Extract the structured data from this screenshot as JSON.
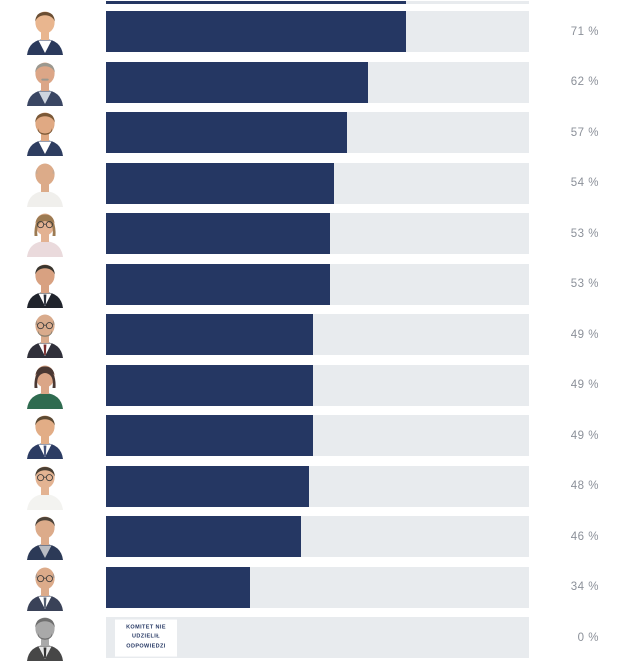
{
  "chart_data": {
    "type": "bar",
    "orientation": "horizontal",
    "title": "",
    "xlabel": "",
    "ylabel": "",
    "xlim": [
      0,
      100
    ],
    "grid": false,
    "legend": null,
    "categories": [
      "candidate-01",
      "candidate-02",
      "candidate-03",
      "candidate-04",
      "candidate-05",
      "candidate-06",
      "candidate-07",
      "candidate-08",
      "candidate-09",
      "candidate-10",
      "candidate-11",
      "candidate-12",
      "candidate-13"
    ],
    "values": [
      71,
      62,
      57,
      54,
      53,
      53,
      49,
      49,
      49,
      48,
      46,
      34,
      0
    ],
    "value_labels": [
      "71 %",
      "62 %",
      "57 %",
      "54 %",
      "53 %",
      "53 %",
      "49 %",
      "49 %",
      "49 %",
      "48 %",
      "46 %",
      "34 %",
      "0 %"
    ],
    "top_cutoff_bar_value": 71,
    "no_answer_note": "KOMITET NIE UDZIELIŁ ODPOWIEDZI",
    "colors": {
      "bar": "#253763",
      "track": "#e8ebee",
      "percent_text": "#8b9099",
      "note_text": "#253763",
      "note_bg": "#ffffff"
    },
    "rows": [
      {
        "value": 71,
        "label": "71 %",
        "no_answer": false,
        "avatar": {
          "name": "candidate-photo",
          "skin": "#e9b68f",
          "hair": "#6b4e33",
          "suit": "#2b3a5c",
          "shirt": "#ffffff",
          "tie": null,
          "glasses": false,
          "beard": false,
          "mustache": false,
          "female": false,
          "bald": false
        }
      },
      {
        "value": 62,
        "label": "62 %",
        "no_answer": false,
        "avatar": {
          "name": "candidate-photo",
          "skin": "#dca687",
          "hair": "#9b988f",
          "suit": "#3a4663",
          "shirt": "#cdd4de",
          "tie": null,
          "glasses": false,
          "beard": false,
          "mustache": true,
          "female": false,
          "bald": false
        }
      },
      {
        "value": 57,
        "label": "57 %",
        "no_answer": false,
        "avatar": {
          "name": "candidate-photo",
          "skin": "#e0a983",
          "hair": "#7b5836",
          "suit": "#2e3d60",
          "shirt": "#ffffff",
          "tie": null,
          "glasses": false,
          "beard": true,
          "mustache": false,
          "female": false,
          "bald": false
        }
      },
      {
        "value": 54,
        "label": "54 %",
        "no_answer": false,
        "avatar": {
          "name": "candidate-photo",
          "skin": "#dcab89",
          "hair": "#b9a897",
          "suit": "#f0efec",
          "shirt": null,
          "tie": null,
          "glasses": false,
          "beard": false,
          "mustache": false,
          "female": false,
          "bald": true
        }
      },
      {
        "value": 53,
        "label": "53 %",
        "no_answer": false,
        "avatar": {
          "name": "candidate-photo",
          "skin": "#e3b292",
          "hair": "#9c7a52",
          "suit": "#eadadc",
          "shirt": null,
          "tie": null,
          "glasses": true,
          "beard": false,
          "mustache": false,
          "female": true,
          "bald": false
        }
      },
      {
        "value": 53,
        "label": "53 %",
        "no_answer": false,
        "avatar": {
          "name": "candidate-photo",
          "skin": "#d8a181",
          "hair": "#3a352e",
          "suit": "#20242c",
          "shirt": "#ffffff",
          "tie": "#2a2f3a",
          "glasses": false,
          "beard": false,
          "mustache": false,
          "female": false,
          "bald": false
        }
      },
      {
        "value": 49,
        "label": "49 %",
        "no_answer": false,
        "avatar": {
          "name": "candidate-photo",
          "skin": "#d9ab8c",
          "hair": "#8a7f6e",
          "suit": "#30303a",
          "shirt": "#ffffff",
          "tie": "#7a2d2d",
          "glasses": true,
          "beard": true,
          "mustache": false,
          "female": false,
          "bald": true
        }
      },
      {
        "value": 49,
        "label": "49 %",
        "no_answer": false,
        "avatar": {
          "name": "candidate-photo",
          "skin": "#dba687",
          "hair": "#4a3833",
          "suit": "#2f6b50",
          "shirt": null,
          "tie": null,
          "glasses": false,
          "beard": false,
          "mustache": false,
          "female": true,
          "bald": false
        }
      },
      {
        "value": 49,
        "label": "49 %",
        "no_answer": false,
        "avatar": {
          "name": "candidate-photo",
          "skin": "#e2ad86",
          "hair": "#5d4a33",
          "suit": "#2c3c63",
          "shirt": "#ffffff",
          "tie": "#44517a",
          "glasses": false,
          "beard": false,
          "mustache": false,
          "female": false,
          "bald": false
        }
      },
      {
        "value": 48,
        "label": "48 %",
        "no_answer": false,
        "avatar": {
          "name": "candidate-photo",
          "skin": "#e3b392",
          "hair": "#4a3f33",
          "suit": "#f3f3f0",
          "shirt": null,
          "tie": null,
          "glasses": true,
          "beard": false,
          "mustache": false,
          "female": false,
          "bald": false
        }
      },
      {
        "value": 46,
        "label": "46 %",
        "no_answer": false,
        "avatar": {
          "name": "candidate-photo",
          "skin": "#dcab8a",
          "hair": "#4c4238",
          "suit": "#2c3a57",
          "shirt": "#b9bcc2",
          "tie": null,
          "glasses": false,
          "beard": false,
          "mustache": false,
          "female": false,
          "bald": false
        }
      },
      {
        "value": 34,
        "label": "34 %",
        "no_answer": false,
        "avatar": {
          "name": "candidate-photo",
          "skin": "#dcab8a",
          "hair": "#8a8a8a",
          "suit": "#3a4258",
          "shirt": "#ffffff",
          "tie": "#555f70",
          "glasses": true,
          "beard": false,
          "mustache": false,
          "female": false,
          "bald": true
        }
      },
      {
        "value": 0,
        "label": "0 %",
        "no_answer": true,
        "avatar": {
          "name": "candidate-photo-grayscale",
          "skin": "#a9a9a9",
          "hair": "#6f6f6f",
          "suit": "#474747",
          "shirt": "#e8e8e8",
          "tie": "#333333",
          "glasses": false,
          "beard": true,
          "mustache": false,
          "female": false,
          "bald": false
        }
      }
    ]
  }
}
